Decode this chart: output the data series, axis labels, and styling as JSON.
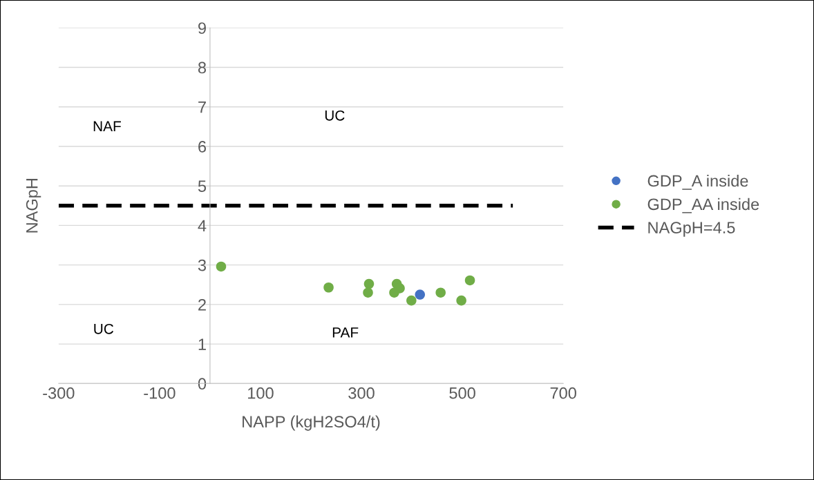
{
  "chart_data": {
    "type": "scatter",
    "xlabel": "NAPP (kgH2SO4/t)",
    "ylabel": "NAGpH",
    "xlim": [
      -300,
      700
    ],
    "xticks": [
      -300,
      -100,
      100,
      300,
      500,
      700
    ],
    "ylim": [
      0,
      9
    ],
    "yticks": [
      0,
      1,
      2,
      3,
      4,
      5,
      6,
      7,
      8,
      9
    ],
    "grid": "y",
    "legend": "right",
    "marker": "circle",
    "series": [
      {
        "name": "GDP_A inside",
        "color": "#4472c4",
        "x": [
          416
        ],
        "values": [
          2.25
        ]
      },
      {
        "name": "GDP_AA inside",
        "color": "#70ad47",
        "x": [
          22,
          235,
          315,
          313,
          370,
          376,
          365,
          399,
          457,
          498,
          515
        ],
        "values": [
          2.96,
          2.43,
          2.52,
          2.3,
          2.52,
          2.41,
          2.3,
          2.1,
          2.3,
          2.1,
          2.61
        ]
      },
      {
        "name": "NAGpH=4.5",
        "type": "line",
        "color": "#000000",
        "line_style": "dashed",
        "marker": "none",
        "x": [
          -300,
          600
        ],
        "values": [
          4.5,
          4.5
        ]
      }
    ],
    "annotations": [
      "NAF",
      "UC",
      "UC",
      "PAF"
    ]
  }
}
